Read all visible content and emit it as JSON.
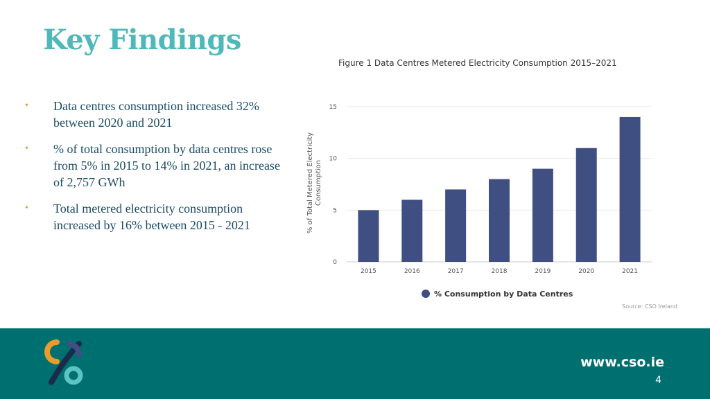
{
  "slide": {
    "title": "Key Findings",
    "bullets": [
      "Data centres consumption increased 32% between 2020 and 2021",
      "% of total consumption by data centres rose from 5% in 2015 to 14% in 2021, an increase of 2,757 GWh",
      "Total metered electricity consumption increased by 16% between 2015 - 2021"
    ],
    "bullet_marker": "•",
    "accent_color": "#4fb8b8",
    "bullet_color": "#e89c2c"
  },
  "chart_data": {
    "type": "bar",
    "title": "Figure 1 Data Centres Metered Electricity Consumption 2015–2021",
    "categories": [
      "2015",
      "2016",
      "2017",
      "2018",
      "2019",
      "2020",
      "2021"
    ],
    "series": [
      {
        "name": "% Consumption by Data Centres",
        "values": [
          5,
          6,
          7,
          8,
          9,
          11,
          14
        ],
        "color": "#3f4f82"
      }
    ],
    "ylabel": "% of Total Metered Electricity Consumption",
    "xlabel": "",
    "ylim": [
      0,
      15
    ],
    "yticks": [
      0,
      5,
      10,
      15
    ],
    "grid": true,
    "legend_position": "bottom",
    "source": "Source: CSO Ireland"
  },
  "footer": {
    "website": "www.cso.ie",
    "page_number": "4",
    "background_color": "#006f6f"
  },
  "logo": {
    "icon": "cso-logo-icon"
  }
}
